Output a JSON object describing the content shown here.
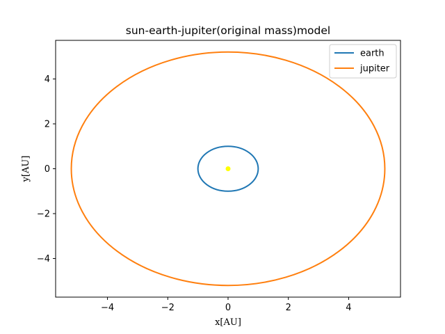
{
  "chart_data": {
    "type": "line",
    "title": "sun-earth-jupiter(original mass)model",
    "xlabel": "x[AU]",
    "ylabel": "y[AU]",
    "xlim": [
      -5.72,
      5.72
    ],
    "ylim": [
      -5.72,
      5.72
    ],
    "xticks": [
      -4,
      -2,
      0,
      2,
      4
    ],
    "yticks": [
      -4,
      -2,
      0,
      2,
      4
    ],
    "xtick_labels": [
      "−4",
      "−2",
      "0",
      "2",
      "4"
    ],
    "ytick_labels": [
      "−4",
      "−2",
      "0",
      "2",
      "4"
    ],
    "grid": false,
    "legend_position": "top-right",
    "series": [
      {
        "name": "earth",
        "color": "#1f77b4",
        "shape": "ellipse",
        "center": [
          0,
          0
        ],
        "semi_axes": [
          1.0,
          1.0
        ]
      },
      {
        "name": "jupiter",
        "color": "#ff7f0e",
        "shape": "ellipse",
        "center": [
          0,
          0
        ],
        "semi_axes": [
          5.2,
          5.2
        ]
      }
    ],
    "sun": {
      "name": "sun",
      "x": 0,
      "y": 0,
      "color": "#ffff00"
    }
  }
}
